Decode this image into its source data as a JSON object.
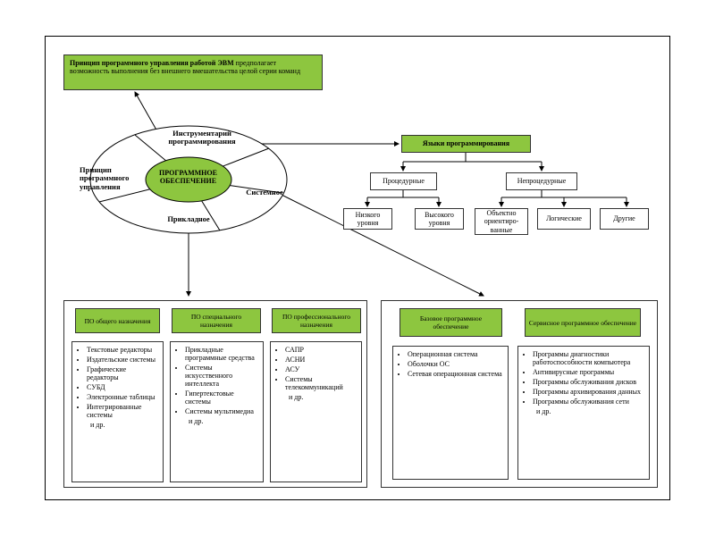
{
  "colors": {
    "accent": "#8dc63f",
    "border": "#333333",
    "bg": "#ffffff",
    "text": "#000000"
  },
  "banner": {
    "bold": "Принцип программного управления работой ЭВМ",
    "rest": " предполагает возможность выполнения без внешнего вмешательства целой серии команд"
  },
  "pie": {
    "center": "ПРОГРАММНОЕ ОБЕСПЕЧЕНИЕ",
    "slices": {
      "top": "Инструментарий программирования",
      "left": "Принцип программного управления",
      "right": "Системное",
      "bottom": "Прикладное"
    }
  },
  "tree": {
    "root": "Языки программирования",
    "left": {
      "label": "Процедурные",
      "children": [
        "Низкого уровня",
        "Высокого уровня"
      ]
    },
    "right": {
      "label": "Непроцедурные",
      "children": [
        "Объектно ориентиро-ванные",
        "Логические",
        "Другие"
      ]
    }
  },
  "left_panel": {
    "columns": [
      {
        "head": "ПО общего назначения",
        "items": [
          "Текстовые редакторы",
          "Издательские системы",
          "Графические редакторы",
          "СУБД",
          "Электронные таблицы",
          "Интегрированные системы",
          "и др."
        ]
      },
      {
        "head": "ПО специального назначения",
        "items": [
          "Прикладные программные средства",
          "Системы искусственного интеллекта",
          "Гипертекстовые системы",
          "Системы мультимедиа",
          "и др."
        ]
      },
      {
        "head": "ПО профессионального назначения",
        "items": [
          "САПР",
          "АСНИ",
          "АСУ",
          "Системы телекоммуникаций",
          "и др."
        ]
      }
    ]
  },
  "right_panel": {
    "columns": [
      {
        "head": "Базовое программное обеспечение",
        "items": [
          "Операционная система",
          "Оболочки ОС",
          "Сетевая операционная система"
        ]
      },
      {
        "head": "Сервисное программное обеспечение",
        "items": [
          "Программы диагностики работоспособности компьютера",
          "Антивирусные программы",
          "Программы обслуживания дисков",
          "Программы архивирования данных",
          "Программы обслуживания сети",
          "и др."
        ]
      }
    ]
  }
}
